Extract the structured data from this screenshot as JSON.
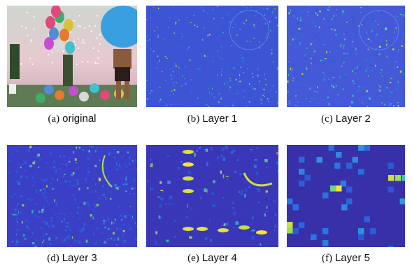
{
  "panels": [
    {
      "label": "(a)",
      "name": "original"
    },
    {
      "label": "(b)",
      "name": "Layer 1"
    },
    {
      "label": "(c)",
      "name": "Layer 2"
    },
    {
      "label": "(d)",
      "name": "Layer 3"
    },
    {
      "label": "(e)",
      "name": "Layer 4"
    },
    {
      "label": "(f)",
      "name": "Layer 5"
    }
  ]
}
